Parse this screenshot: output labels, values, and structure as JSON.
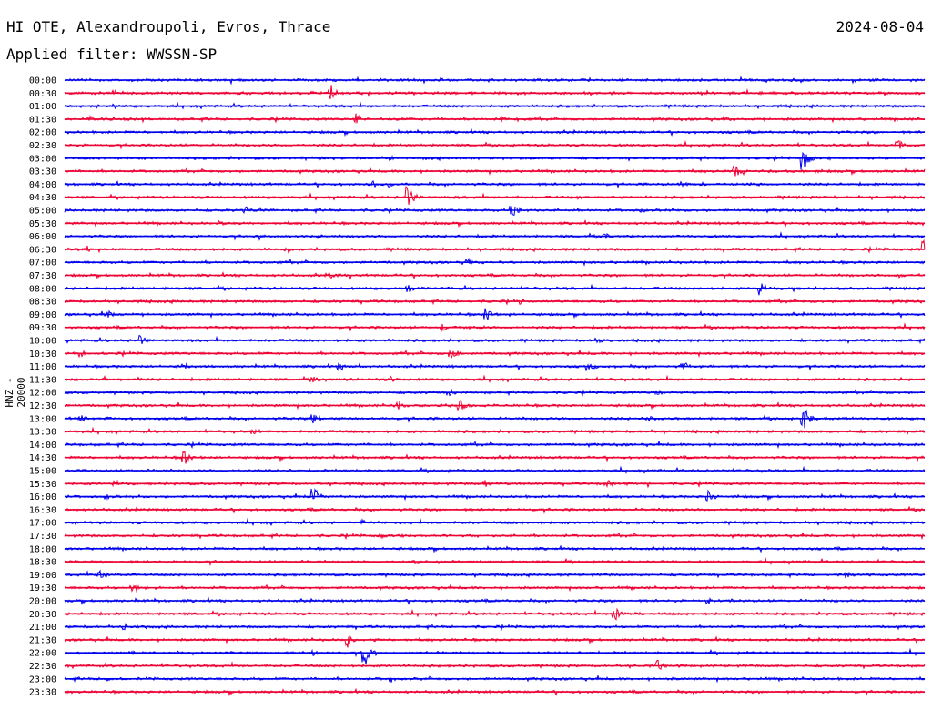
{
  "header": {
    "station": "HI OTE, Alexandroupoli, Evros, Thrace",
    "date": "2024-08-04",
    "filter": "Applied filter: WWSSN-SP"
  },
  "chart_data": {
    "type": "line",
    "title": "HI OTE, Alexandroupoli, Evros, Thrace",
    "ylabel": "HNZ - 20000",
    "row_times": [
      "00:00",
      "00:30",
      "01:00",
      "01:30",
      "02:00",
      "02:30",
      "03:00",
      "03:30",
      "04:00",
      "04:30",
      "05:00",
      "05:30",
      "06:00",
      "06:30",
      "07:00",
      "07:30",
      "08:00",
      "08:30",
      "09:00",
      "09:30",
      "10:00",
      "10:30",
      "11:00",
      "11:30",
      "12:00",
      "12:30",
      "13:00",
      "13:30",
      "14:00",
      "14:30",
      "15:00",
      "15:30",
      "16:00",
      "16:30",
      "17:00",
      "17:30",
      "18:00",
      "18:30",
      "19:00",
      "19:30",
      "20:00",
      "20:30",
      "21:00",
      "21:30",
      "22:00",
      "22:30",
      "23:00",
      "23:30"
    ],
    "row_minutes": 30,
    "colors": {
      "even": "#0000ee",
      "odd": "#ee0033"
    },
    "events": [
      {
        "row": 1,
        "t": 0.31,
        "amp": 11
      },
      {
        "row": 3,
        "t": 0.34,
        "amp": 9
      },
      {
        "row": 3,
        "t": 0.03,
        "amp": 4
      },
      {
        "row": 3,
        "t": 0.51,
        "amp": 4
      },
      {
        "row": 3,
        "t": 0.77,
        "amp": 4
      },
      {
        "row": 5,
        "t": 0.97,
        "amp": 10
      },
      {
        "row": 6,
        "t": 0.86,
        "amp": 16
      },
      {
        "row": 6,
        "t": 0.38,
        "amp": 4
      },
      {
        "row": 7,
        "t": 0.78,
        "amp": 9
      },
      {
        "row": 8,
        "t": 0.36,
        "amp": 4
      },
      {
        "row": 8,
        "t": 0.72,
        "amp": 6
      },
      {
        "row": 9,
        "t": 0.4,
        "amp": 15
      },
      {
        "row": 9,
        "t": 0.6,
        "amp": 4
      },
      {
        "row": 10,
        "t": 0.52,
        "amp": 11
      },
      {
        "row": 10,
        "t": 0.21,
        "amp": 5
      },
      {
        "row": 10,
        "t": 0.67,
        "amp": 4
      },
      {
        "row": 11,
        "t": 0.18,
        "amp": 4
      },
      {
        "row": 12,
        "t": 0.23,
        "amp": 4
      },
      {
        "row": 12,
        "t": 0.63,
        "amp": 4
      },
      {
        "row": 13,
        "t": 1.0,
        "amp": 15
      },
      {
        "row": 13,
        "t": 0.03,
        "amp": 5
      },
      {
        "row": 13,
        "t": 0.26,
        "amp": 4
      },
      {
        "row": 14,
        "t": 0.47,
        "amp": 5
      },
      {
        "row": 15,
        "t": 0.31,
        "amp": 5
      },
      {
        "row": 15,
        "t": 0.97,
        "amp": 5
      },
      {
        "row": 16,
        "t": 0.4,
        "amp": 6
      },
      {
        "row": 16,
        "t": 0.81,
        "amp": 10
      },
      {
        "row": 17,
        "t": 0.53,
        "amp": 4
      },
      {
        "row": 18,
        "t": 0.49,
        "amp": 11
      },
      {
        "row": 18,
        "t": 0.05,
        "amp": 5
      },
      {
        "row": 19,
        "t": 0.44,
        "amp": 7
      },
      {
        "row": 20,
        "t": 0.09,
        "amp": 7
      },
      {
        "row": 20,
        "t": 0.62,
        "amp": 5
      },
      {
        "row": 21,
        "t": 0.45,
        "amp": 9
      },
      {
        "row": 21,
        "t": 0.02,
        "amp": 4
      },
      {
        "row": 22,
        "t": 0.14,
        "amp": 7
      },
      {
        "row": 22,
        "t": 0.32,
        "amp": 6
      },
      {
        "row": 22,
        "t": 0.61,
        "amp": 5
      },
      {
        "row": 22,
        "t": 0.72,
        "amp": 7
      },
      {
        "row": 23,
        "t": 0.05,
        "amp": 4
      },
      {
        "row": 23,
        "t": 0.29,
        "amp": 5
      },
      {
        "row": 23,
        "t": 0.38,
        "amp": 4
      },
      {
        "row": 24,
        "t": 0.45,
        "amp": 6
      },
      {
        "row": 24,
        "t": 0.69,
        "amp": 4
      },
      {
        "row": 25,
        "t": 0.46,
        "amp": 9
      },
      {
        "row": 25,
        "t": 0.39,
        "amp": 6
      },
      {
        "row": 26,
        "t": 0.02,
        "amp": 6
      },
      {
        "row": 26,
        "t": 0.29,
        "amp": 7
      },
      {
        "row": 26,
        "t": 0.86,
        "amp": 15
      },
      {
        "row": 26,
        "t": 0.68,
        "amp": 5
      },
      {
        "row": 27,
        "t": 0.22,
        "amp": 4
      },
      {
        "row": 29,
        "t": 0.14,
        "amp": 9
      },
      {
        "row": 31,
        "t": 0.06,
        "amp": 6
      },
      {
        "row": 31,
        "t": 0.63,
        "amp": 8
      },
      {
        "row": 31,
        "t": 0.49,
        "amp": 5
      },
      {
        "row": 32,
        "t": 0.29,
        "amp": 13
      },
      {
        "row": 32,
        "t": 0.75,
        "amp": 10
      },
      {
        "row": 32,
        "t": 0.05,
        "amp": 4
      },
      {
        "row": 34,
        "t": 0.35,
        "amp": 4
      },
      {
        "row": 35,
        "t": 0.37,
        "amp": 4
      },
      {
        "row": 37,
        "t": 0.41,
        "amp": 4
      },
      {
        "row": 38,
        "t": 0.04,
        "amp": 9
      },
      {
        "row": 38,
        "t": 0.91,
        "amp": 8
      },
      {
        "row": 39,
        "t": 0.08,
        "amp": 10
      },
      {
        "row": 40,
        "t": 0.75,
        "amp": 4
      },
      {
        "row": 41,
        "t": 0.64,
        "amp": 9
      },
      {
        "row": 42,
        "t": 0.07,
        "amp": 5
      },
      {
        "row": 43,
        "t": 0.33,
        "amp": 9
      },
      {
        "row": 44,
        "t": 0.35,
        "amp": 15
      },
      {
        "row": 44,
        "t": 0.29,
        "amp": 5
      },
      {
        "row": 45,
        "t": 0.69,
        "amp": 7
      },
      {
        "row": 46,
        "t": 0.38,
        "amp": 5
      },
      {
        "row": 46,
        "t": 0.05,
        "amp": 4
      }
    ]
  }
}
